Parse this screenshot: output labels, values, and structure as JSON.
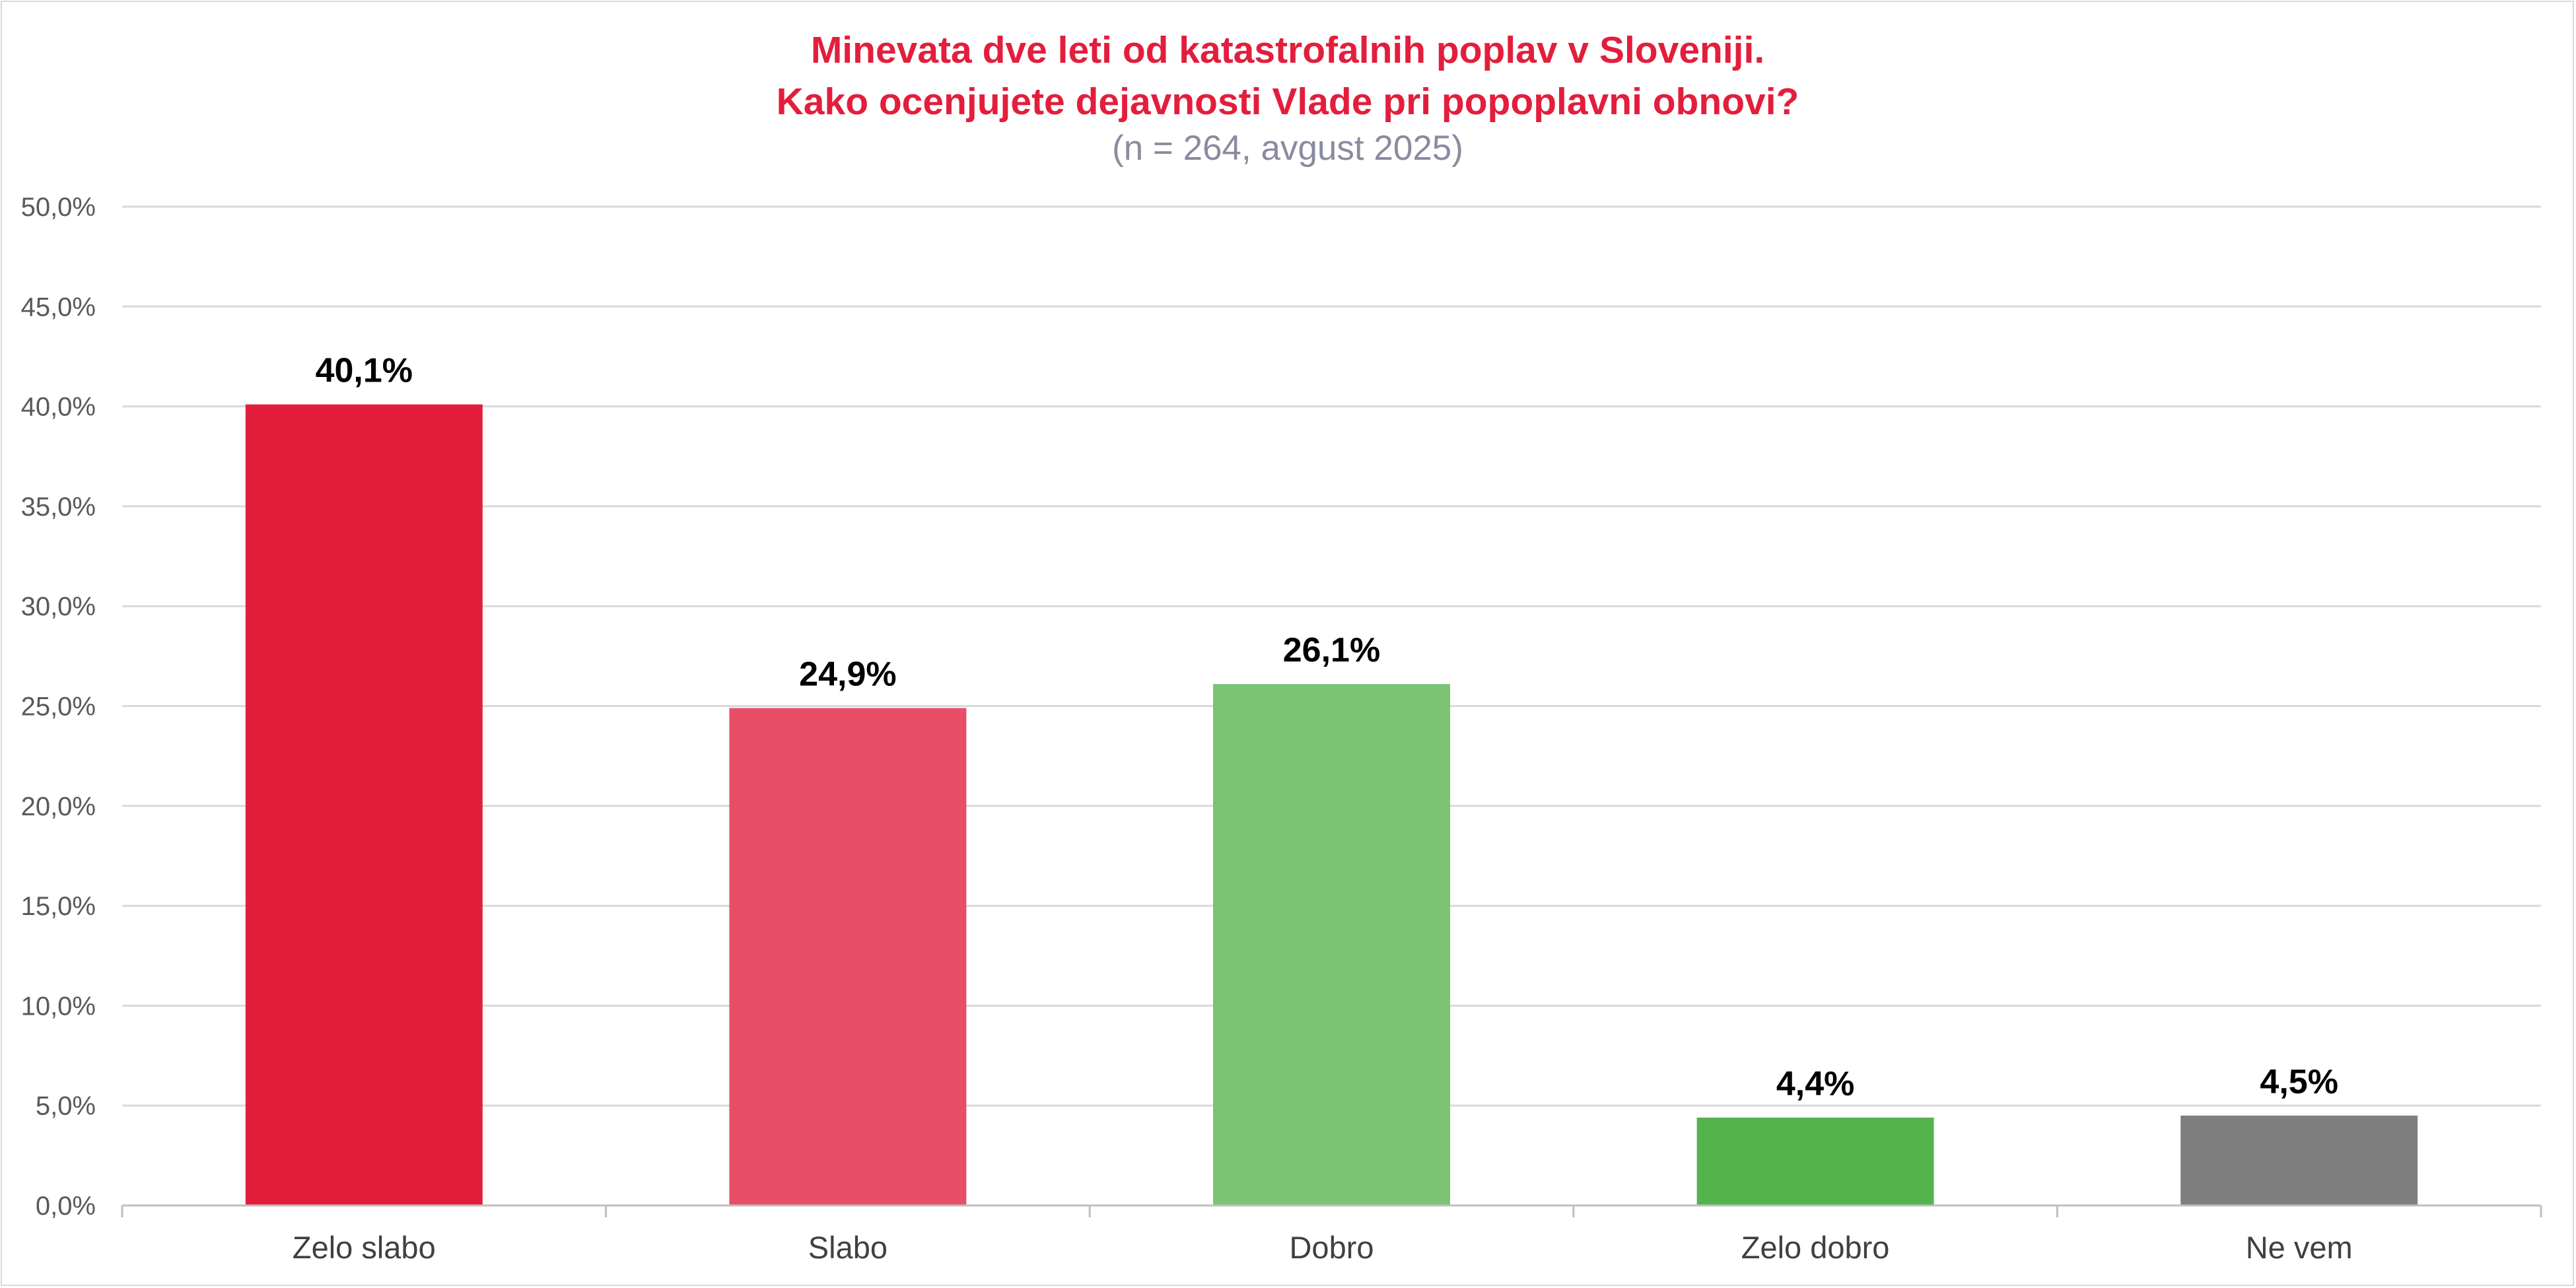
{
  "chart_data": {
    "type": "bar",
    "title_lines": [
      "Minevata dve leti od katastrofalnih poplav v Sloveniji.",
      "Kako ocenjujete dejavnosti Vlade pri popoplavni obnovi?"
    ],
    "subtitle": "(n = 264, avgust 2025)",
    "categories": [
      "Zelo slabo",
      "Slabo",
      "Dobro",
      "Zelo dobro",
      "Ne vem"
    ],
    "values": [
      40.1,
      24.9,
      26.1,
      4.4,
      4.5
    ],
    "data_labels": [
      "40,1%",
      "24,9%",
      "26,1%",
      "4,4%",
      "4,5%"
    ],
    "colors": [
      "#e31e3c",
      "#e94e67",
      "#7ac474",
      "#54b44c",
      "#7f7f7f"
    ],
    "ylim": [
      0,
      50
    ],
    "yticks": [
      0,
      5,
      10,
      15,
      20,
      25,
      30,
      35,
      40,
      45,
      50
    ],
    "ytick_labels": [
      "0,0%",
      "5,0%",
      "10,0%",
      "15,0%",
      "20,0%",
      "25,0%",
      "30,0%",
      "35,0%",
      "40,0%",
      "45,0%",
      "50,0%"
    ],
    "grid": true,
    "xlabel": "",
    "ylabel": "",
    "colors_meta": {
      "title": "#e31e3c",
      "subtitle": "#8a8aa0"
    }
  }
}
